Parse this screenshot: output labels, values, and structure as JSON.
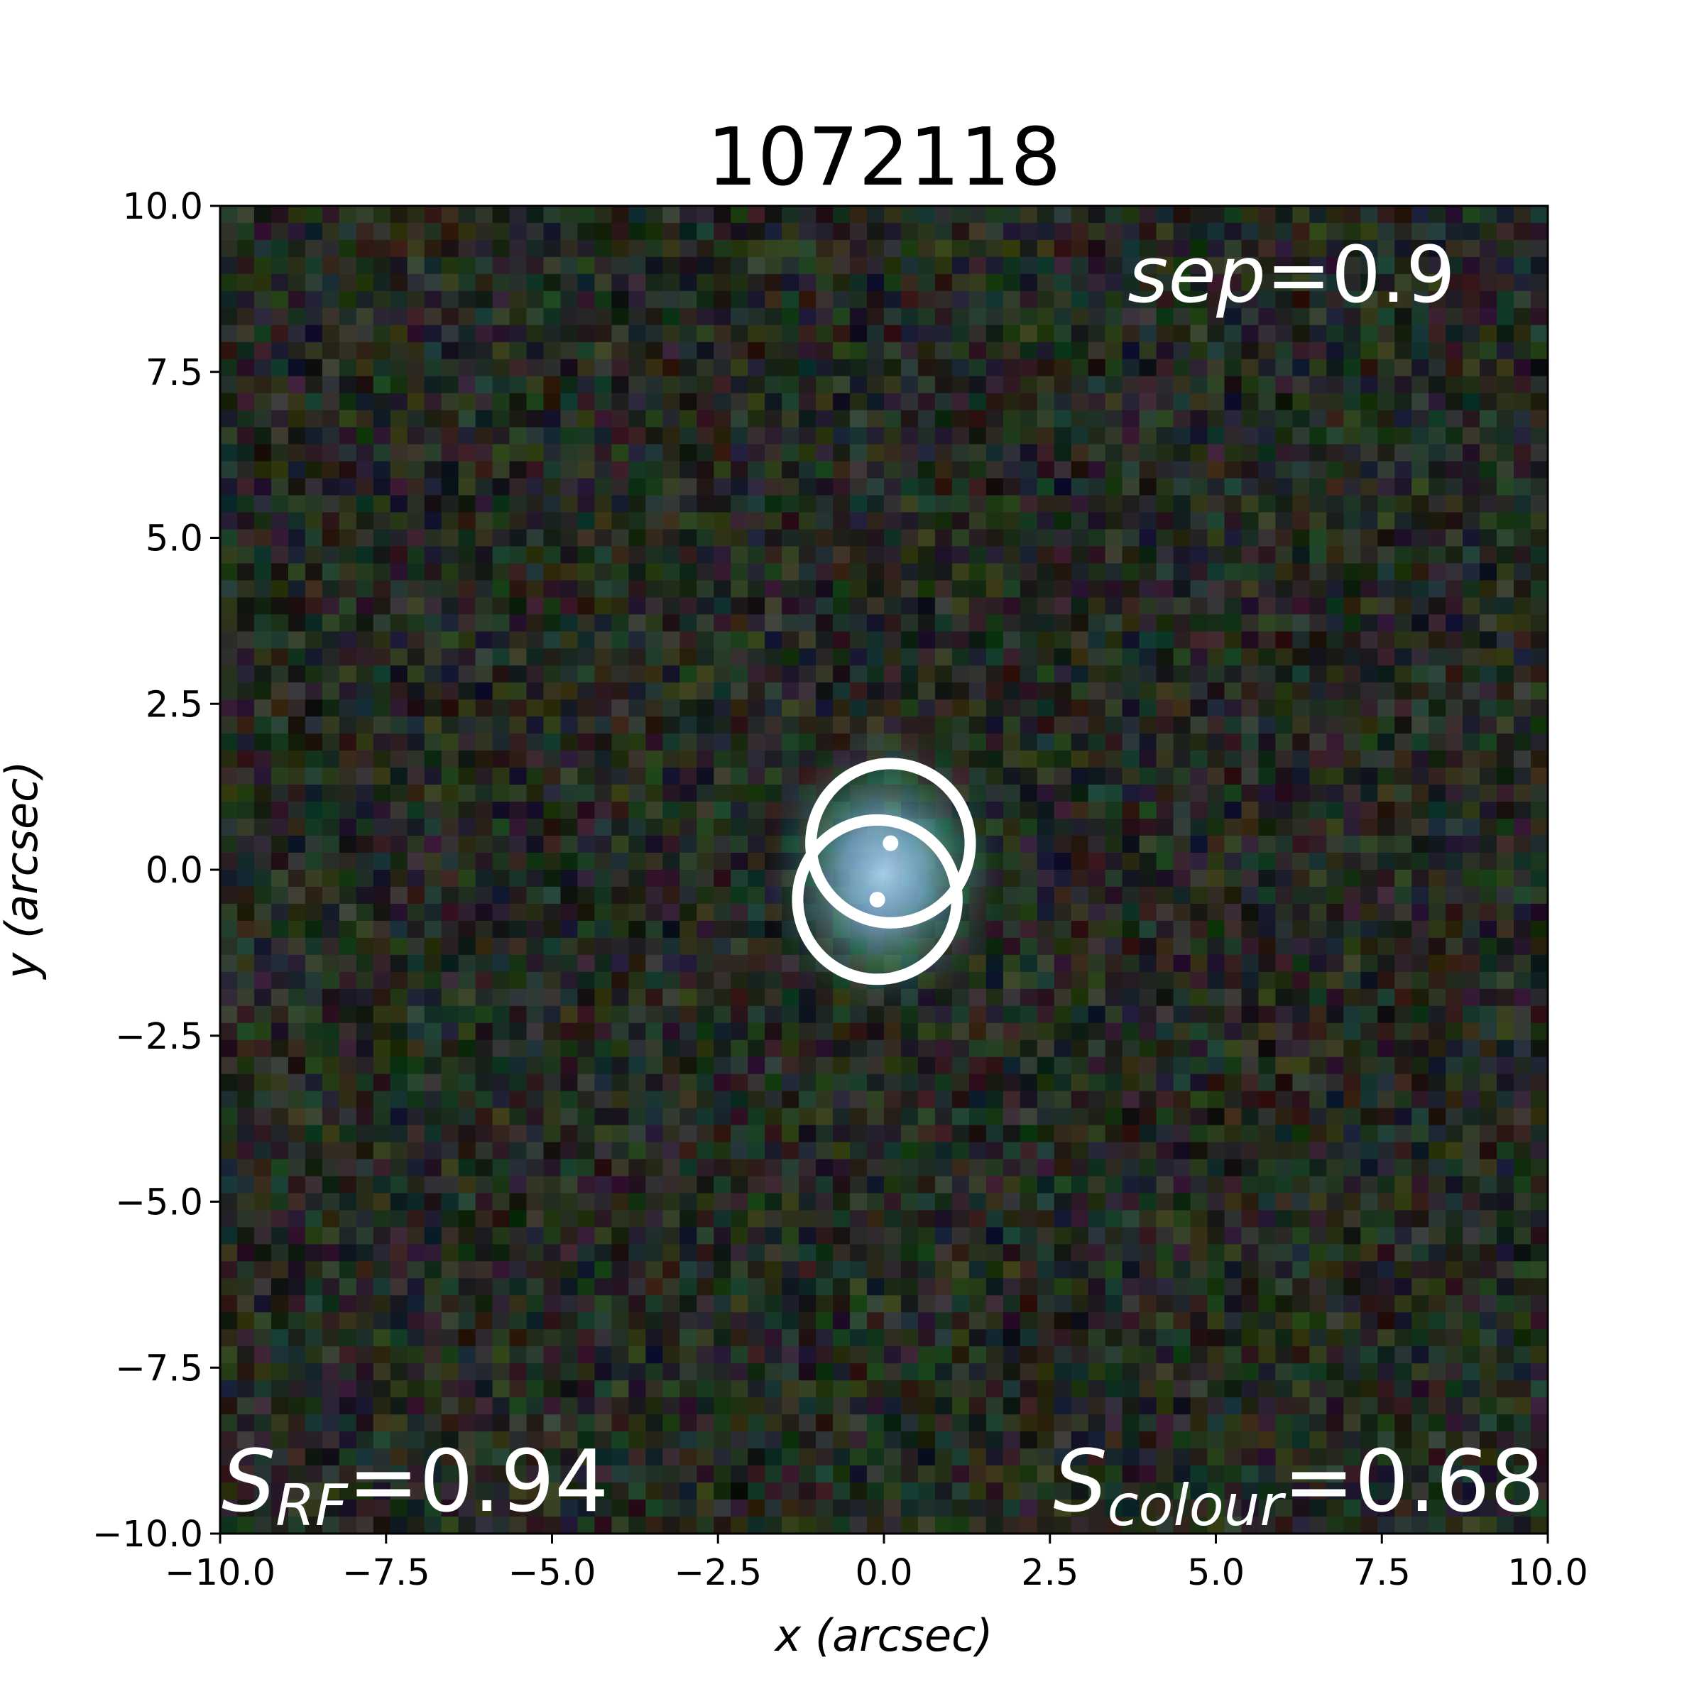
{
  "chart_data": {
    "type": "heatmap",
    "title": "1072118",
    "xlabel": "x (arcsec)",
    "ylabel": "y (arcsec)",
    "xlim": [
      -10.0,
      10.0
    ],
    "ylim": [
      -10.0,
      10.0
    ],
    "x_ticks": [
      "−10.0",
      "−7.5",
      "−5.0",
      "−2.5",
      "0.0",
      "2.5",
      "5.0",
      "7.5",
      "10.0"
    ],
    "x_tick_values": [
      -10.0,
      -7.5,
      -5.0,
      -2.5,
      0.0,
      2.5,
      5.0,
      7.5,
      10.0
    ],
    "y_ticks": [
      "−10.0",
      "−7.5",
      "−5.0",
      "−2.5",
      "0.0",
      "2.5",
      "5.0",
      "7.5",
      "10.0"
    ],
    "y_tick_values": [
      -10.0,
      -7.5,
      -5.0,
      -2.5,
      0.0,
      2.5,
      5.0,
      7.5,
      10.0
    ],
    "image": "RGB noise cutout with a compact blue-green source at the centre",
    "markers": [
      {
        "name": "source-1",
        "x": 0.1,
        "y": 0.4,
        "radius": 1.2
      },
      {
        "name": "source-2",
        "x": -0.1,
        "y": -0.45,
        "radius": 1.2
      }
    ],
    "annotations": {
      "sep": {
        "label": "sep",
        "value": "=0.9"
      },
      "s_rf": {
        "label": "S",
        "sub": "RF",
        "value": "=0.94"
      },
      "s_colour": {
        "label": "S",
        "sub": "colour",
        "value": "=0.68"
      }
    },
    "grid": false,
    "legend": "none",
    "colors": {
      "marker": "#ffffff",
      "annotation_text": "#ffffff",
      "axes": "#000000"
    }
  }
}
